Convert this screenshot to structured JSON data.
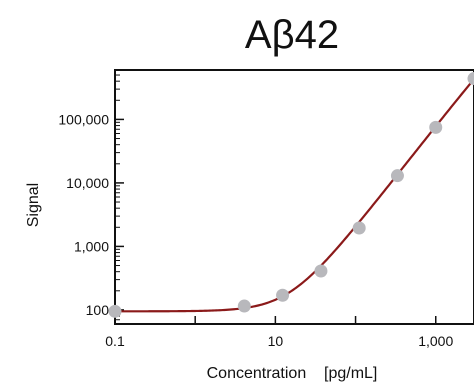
{
  "chart_data": {
    "type": "scatter",
    "title": "Aβ42",
    "xlabel": "Concentration    [pg/mL]",
    "ylabel": "Signal",
    "x_scale": "log",
    "y_scale": "log",
    "xlim": [
      0.1,
      3000
    ],
    "ylim": [
      60,
      600000
    ],
    "x_ticks": [
      {
        "value": 0.1,
        "label": "0.1"
      },
      {
        "value": 10,
        "label": "10"
      },
      {
        "value": 1000,
        "label": "1,000"
      }
    ],
    "y_ticks": [
      {
        "value": 100,
        "label": "100"
      },
      {
        "value": 1000,
        "label": "1,000"
      },
      {
        "value": 10000,
        "label": "10,000"
      },
      {
        "value": 100000,
        "label": "100,000"
      }
    ],
    "series": [
      {
        "points": [
          {
            "x": 0.1,
            "y": 95
          },
          {
            "x": 4.1,
            "y": 115
          },
          {
            "x": 12.3,
            "y": 170
          },
          {
            "x": 37,
            "y": 410
          },
          {
            "x": 111,
            "y": 1950
          },
          {
            "x": 333,
            "y": 13000
          },
          {
            "x": 1000,
            "y": 75000
          },
          {
            "x": 3000,
            "y": 440000
          }
        ]
      }
    ],
    "fit_curve": {
      "bottom": 95,
      "top": 8000000,
      "ec50": 18000,
      "hill": 1.6
    },
    "grid": false,
    "legend": "none",
    "colors": {
      "curve": "#8b1a1a",
      "points": "#b8b8bc",
      "axis": "#111111"
    }
  }
}
